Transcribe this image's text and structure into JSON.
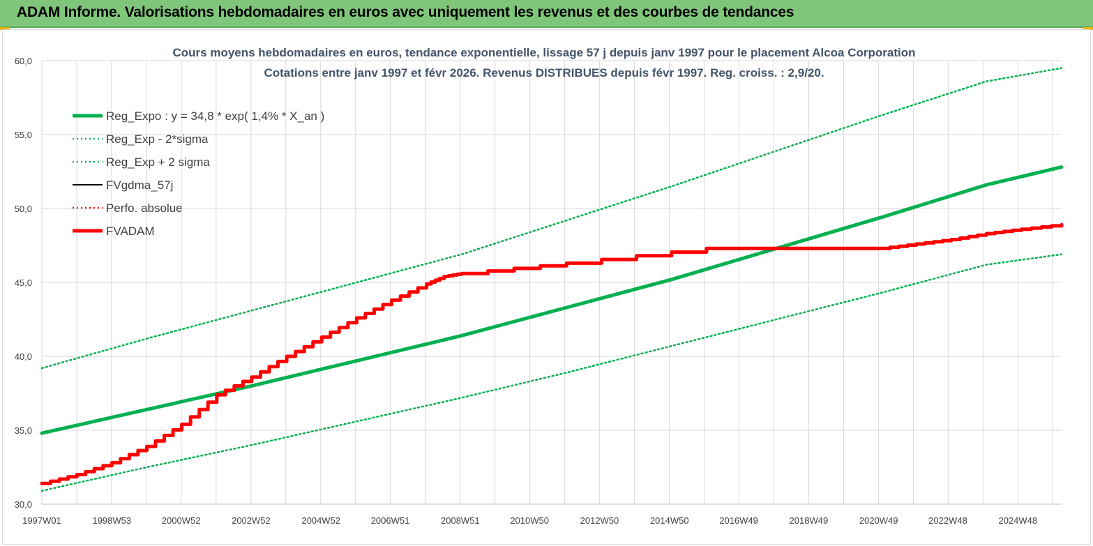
{
  "banner": {
    "title": "ADAM Informe. Valorisations hebdomadaires en euros avec uniquement les revenus et des courbes de tendances"
  },
  "colors": {
    "banner_bg": "#80c67a",
    "green": "#00b050",
    "red": "#ff0000",
    "black": "#000000",
    "grid": "#d9d9d9"
  },
  "chart_data": {
    "type": "line",
    "title_line1": "Cours moyens hebdomadaires en euros, tendance exponentielle, lissage 57 j depuis janv 1997 pour le placement Alcoa Corporation",
    "title_line2": "Cotations entre janv 1997 et févr 2026. Revenus DISTRIBUES depuis févr 1997. Reg. croiss. : 2,9/20.",
    "xlim": [
      1997.0,
      2026.15
    ],
    "ylim": [
      30,
      60
    ],
    "y_ticks": [
      30,
      35,
      40,
      45,
      50,
      55,
      60
    ],
    "y_tick_labels": [
      "30,0",
      "35,0",
      "40,0",
      "45,0",
      "50,0",
      "55,0",
      "60,0"
    ],
    "x_ticks": [
      1997.0,
      1999.0,
      2000.98,
      2002.98,
      2004.98,
      2006.96,
      2008.96,
      2010.94,
      2012.94,
      2014.94,
      2016.92,
      2018.92,
      2020.92,
      2022.9,
      2024.9
    ],
    "x_tick_labels": [
      "1997W01",
      "1998W53",
      "2000W52",
      "2002W52",
      "2004W52",
      "2006W51",
      "2008W51",
      "2010W50",
      "2012W50",
      "2014W50",
      "2016W49",
      "2018W49",
      "2020W49",
      "2022W48",
      "2024W48"
    ],
    "grid": true,
    "legend_position": "top-left",
    "series": [
      {
        "name": "Reg_Expo : y = 34,8 * exp( 1,4% *  X_an )",
        "style": "solid-thick",
        "color": "#00b050",
        "x": [
          1997.0,
          2000.0,
          2003.0,
          2006.0,
          2009.0,
          2012.0,
          2015.0,
          2018.0,
          2021.0,
          2024.0,
          2026.15
        ],
        "y": [
          34.8,
          36.4,
          38.0,
          39.7,
          41.4,
          43.3,
          45.2,
          47.3,
          49.4,
          51.6,
          52.8
        ]
      },
      {
        "name": "Reg_Exp - 2*sigma",
        "style": "dotted",
        "color": "#00b050",
        "x": [
          1997.0,
          2000.0,
          2003.0,
          2006.0,
          2009.0,
          2012.0,
          2015.0,
          2018.0,
          2021.0,
          2024.0,
          2026.15
        ],
        "y": [
          30.9,
          32.5,
          34.0,
          35.6,
          37.2,
          38.9,
          40.7,
          42.5,
          44.3,
          46.2,
          46.9
        ]
      },
      {
        "name": "Reg_Exp + 2 sigma",
        "style": "dotted",
        "color": "#00b050",
        "x": [
          1997.0,
          2000.0,
          2003.0,
          2006.0,
          2009.0,
          2012.0,
          2015.0,
          2018.0,
          2021.0,
          2024.0,
          2026.15
        ],
        "y": [
          39.2,
          41.2,
          43.1,
          45.0,
          46.9,
          49.2,
          51.5,
          53.9,
          56.3,
          58.6,
          59.5
        ]
      },
      {
        "name": "FVgdma_57j",
        "style": "solid",
        "color": "#000000",
        "x": [],
        "y": []
      },
      {
        "name": "Perfo. absolue",
        "style": "dotted",
        "color": "#ff0000",
        "x": [],
        "y": []
      },
      {
        "name": "FVADAM",
        "style": "solid-thick",
        "color": "#ff0000",
        "x": [
          1997.0,
          1998.0,
          1999.0,
          2000.0,
          2001.0,
          2002.0,
          2003.0,
          2004.0,
          2005.0,
          2006.0,
          2007.0,
          2008.0,
          2008.5,
          2009.0,
          2012.0,
          2016.0,
          2017.0,
          2018.0,
          2019.0,
          2020.0,
          2021.0,
          2022.0,
          2023.0,
          2024.0,
          2025.0,
          2026.15
        ],
        "y": [
          31.4,
          32.0,
          32.8,
          33.9,
          35.4,
          37.4,
          38.6,
          40.0,
          41.3,
          42.6,
          43.8,
          44.9,
          45.4,
          45.6,
          46.3,
          47.3,
          47.3,
          47.3,
          47.3,
          47.3,
          47.3,
          47.6,
          47.9,
          48.3,
          48.6,
          48.9
        ]
      }
    ]
  }
}
